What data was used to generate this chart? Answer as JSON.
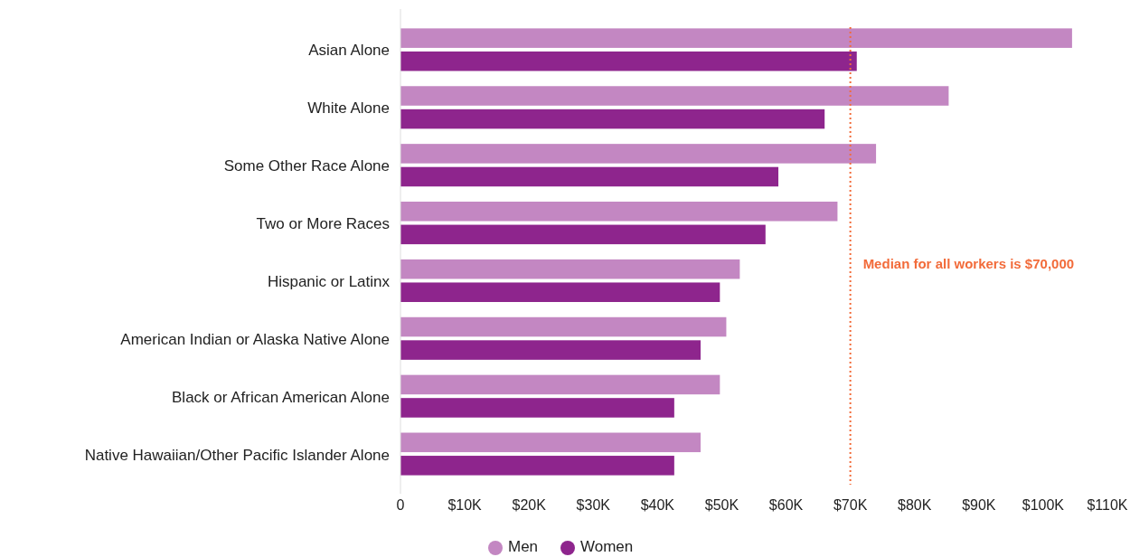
{
  "chart_data": {
    "type": "bar",
    "orientation": "horizontal",
    "categories": [
      "Asian Alone",
      "White Alone",
      "Some Other Race Alone",
      "Two or More Races",
      "Hispanic or Latinx",
      "American Indian or Alaska Native Alone",
      "Black or African American Alone",
      "Native Hawaiian/Other Pacific Islander Alone"
    ],
    "series": [
      {
        "name": "Men",
        "color": "#c387c2",
        "values": [
          104500,
          85300,
          74000,
          68000,
          52800,
          50700,
          49700,
          46700
        ]
      },
      {
        "name": "Women",
        "color": "#8e258d",
        "values": [
          71000,
          66000,
          58800,
          56800,
          49700,
          46700,
          42600,
          42600
        ]
      }
    ],
    "xlim": [
      0,
      110000
    ],
    "xticks": [
      {
        "value": 0,
        "label": "0"
      },
      {
        "value": 10000,
        "label": "$10K"
      },
      {
        "value": 20000,
        "label": "$20K"
      },
      {
        "value": 30000,
        "label": "$30K"
      },
      {
        "value": 40000,
        "label": "$40K"
      },
      {
        "value": 50000,
        "label": "$50K"
      },
      {
        "value": 60000,
        "label": "$60K"
      },
      {
        "value": 70000,
        "label": "$70K"
      },
      {
        "value": 80000,
        "label": "$80K"
      },
      {
        "value": 90000,
        "label": "$90K"
      },
      {
        "value": 100000,
        "label": "$100K"
      },
      {
        "value": 110000,
        "label": "$110K"
      }
    ],
    "ref_lines": [
      {
        "axis": "x",
        "value": 70000,
        "label": "Median for all workers is $70,000",
        "color": "#f26b3a",
        "line_style": "dotted"
      }
    ],
    "legend": "bottom",
    "grid": false
  }
}
